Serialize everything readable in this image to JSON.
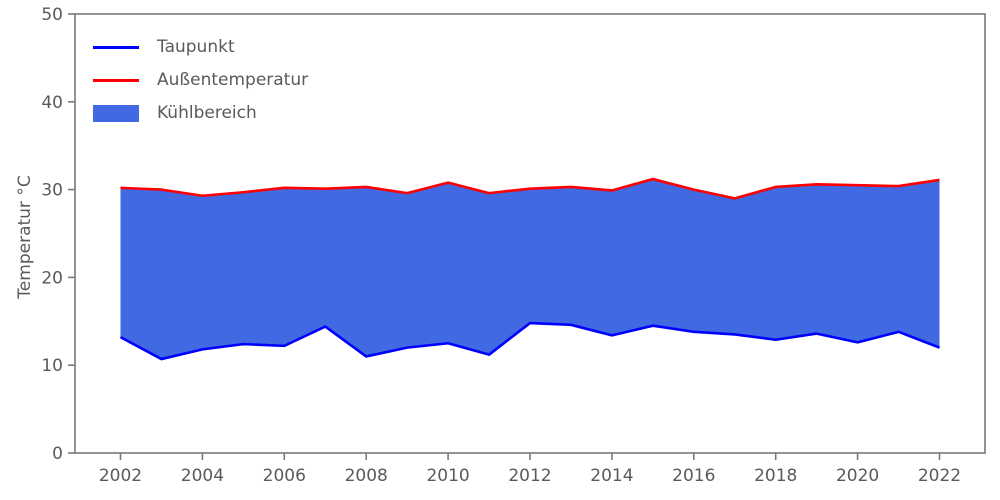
{
  "chart_data": {
    "type": "area",
    "title": "",
    "xlabel": "",
    "ylabel": "Temperatur °C",
    "ylim": [
      0,
      50
    ],
    "yticks": [
      0,
      10,
      20,
      30,
      40,
      50
    ],
    "xticks": [
      2002,
      2004,
      2006,
      2008,
      2010,
      2012,
      2014,
      2016,
      2018,
      2020,
      2022
    ],
    "x": [
      2002,
      2003,
      2004,
      2005,
      2006,
      2007,
      2008,
      2009,
      2010,
      2011,
      2012,
      2013,
      2014,
      2015,
      2016,
      2017,
      2018,
      2019,
      2020,
      2021,
      2022
    ],
    "series": [
      {
        "name": "Taupunkt",
        "color": "#0000ff",
        "values": [
          13.2,
          10.7,
          11.8,
          12.4,
          12.2,
          14.4,
          11.0,
          12.0,
          12.5,
          11.2,
          14.8,
          14.6,
          13.4,
          14.5,
          13.8,
          13.5,
          12.9,
          13.6,
          12.6,
          13.8,
          12.0
        ]
      },
      {
        "name": "Außentemperatur",
        "color": "#ff0000",
        "values": [
          30.2,
          30.0,
          29.3,
          29.7,
          30.2,
          30.1,
          30.3,
          29.6,
          30.8,
          29.6,
          30.1,
          30.3,
          29.9,
          31.2,
          30.0,
          29.0,
          30.3,
          30.6,
          30.5,
          30.4,
          31.1
        ]
      }
    ],
    "fill": {
      "name": "Kühlbereich",
      "color": "#4169e1"
    },
    "legend_position": "upper-left",
    "grid": false,
    "axis_color": "#7a7a7a",
    "text_color": "#5a5a5a"
  }
}
